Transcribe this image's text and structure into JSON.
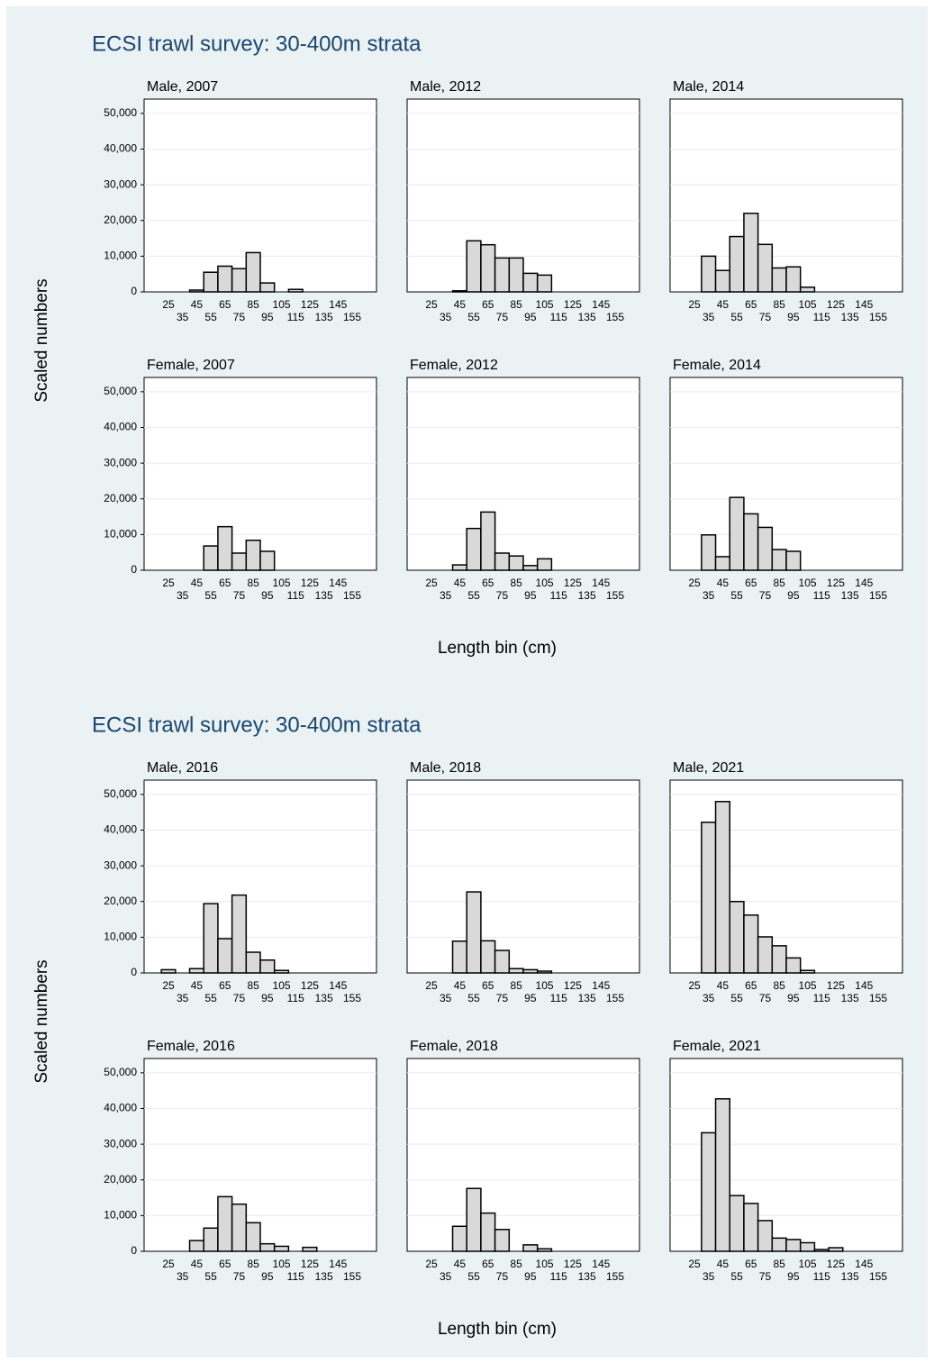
{
  "chart_data": [
    {
      "type": "bar",
      "title": "ECSI trawl survey: 30-400m strata",
      "y_label": "Scaled numbers",
      "x_label": "Length bin (cm)",
      "categories": [
        "25",
        "35",
        "45",
        "55",
        "65",
        "75",
        "85",
        "95",
        "105",
        "115",
        "125",
        "135",
        "145",
        "155"
      ],
      "ylim": [
        0,
        54000
      ],
      "yticks": [
        0,
        {
          "value": 10000,
          "label": "10,000"
        },
        {
          "value": 20000,
          "label": "20,000"
        },
        {
          "value": 30000,
          "label": "30,000"
        },
        {
          "value": 40000,
          "label": "40,000"
        },
        {
          "value": 50000,
          "label": "50,000"
        }
      ],
      "grid": true,
      "color": "#d9d9d9",
      "panels": [
        {
          "title": "Male, 2007",
          "values": [
            0,
            0,
            500,
            5500,
            7200,
            6500,
            11000,
            2500,
            0,
            700,
            0,
            0,
            0,
            0
          ]
        },
        {
          "title": "Male, 2012",
          "values": [
            0,
            0,
            300,
            14300,
            13200,
            9500,
            9500,
            5200,
            4700,
            0,
            0,
            0,
            0,
            0
          ]
        },
        {
          "title": "Male, 2014",
          "values": [
            0,
            10000,
            6000,
            15500,
            22000,
            13300,
            6700,
            7000,
            1300,
            0,
            0,
            0,
            0,
            0
          ]
        },
        {
          "title": "Female, 2007",
          "values": [
            0,
            0,
            0,
            6800,
            12200,
            4800,
            8400,
            5300,
            0,
            0,
            0,
            0,
            0,
            0
          ]
        },
        {
          "title": "Female, 2012",
          "values": [
            0,
            0,
            1500,
            11700,
            16300,
            4800,
            4000,
            1300,
            3200,
            0,
            0,
            0,
            0,
            0
          ]
        },
        {
          "title": "Female, 2014",
          "values": [
            0,
            9900,
            3800,
            20400,
            15800,
            12000,
            5800,
            5300,
            0,
            0,
            0,
            0,
            0,
            0
          ]
        }
      ]
    },
    {
      "type": "bar",
      "title": "ECSI trawl survey: 30-400m strata",
      "y_label": "Scaled numbers",
      "x_label": "Length bin (cm)",
      "categories": [
        "25",
        "35",
        "45",
        "55",
        "65",
        "75",
        "85",
        "95",
        "105",
        "115",
        "125",
        "135",
        "145",
        "155"
      ],
      "ylim": [
        0,
        54000
      ],
      "yticks": [
        0,
        {
          "value": 10000,
          "label": "10,000"
        },
        {
          "value": 20000,
          "label": "20,000"
        },
        {
          "value": 30000,
          "label": "30,000"
        },
        {
          "value": 40000,
          "label": "40,000"
        },
        {
          "value": 50000,
          "label": "50,000"
        }
      ],
      "grid": true,
      "color": "#d9d9d9",
      "panels": [
        {
          "title": "Male, 2016",
          "values": [
            900,
            0,
            1200,
            19400,
            9600,
            21800,
            5800,
            3600,
            700,
            0,
            0,
            0,
            0,
            0
          ]
        },
        {
          "title": "Male, 2018",
          "values": [
            0,
            0,
            8900,
            22700,
            9000,
            6300,
            1200,
            900,
            500,
            0,
            0,
            0,
            0,
            0
          ]
        },
        {
          "title": "Male, 2021",
          "values": [
            0,
            42200,
            48000,
            20000,
            16200,
            10100,
            7600,
            4200,
            700,
            0,
            0,
            0,
            0,
            0
          ]
        },
        {
          "title": "Female, 2016",
          "values": [
            0,
            0,
            3000,
            6500,
            15300,
            13200,
            8000,
            2100,
            1400,
            0,
            1100,
            0,
            0,
            0
          ]
        },
        {
          "title": "Female, 2018",
          "values": [
            0,
            0,
            7000,
            17600,
            10700,
            6100,
            0,
            1800,
            700,
            0,
            0,
            0,
            0,
            0
          ]
        },
        {
          "title": "Female, 2021",
          "values": [
            0,
            33200,
            42700,
            15600,
            13400,
            8600,
            3700,
            3300,
            2400,
            500,
            1000,
            0,
            0,
            0
          ]
        }
      ]
    }
  ]
}
